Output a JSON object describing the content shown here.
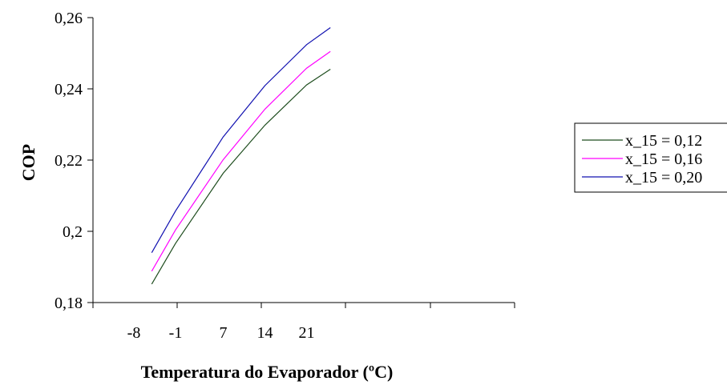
{
  "chart_data": {
    "type": "line",
    "title": "",
    "xlabel": "Temperatura do Evaporador (ºC)",
    "ylabel": "COP",
    "x": [
      -5,
      -1,
      7,
      14,
      21,
      25
    ],
    "series": [
      {
        "name": "x_15 = 0,12",
        "color": "#1e4d1e",
        "values": [
          0.1852,
          0.1966,
          0.2163,
          0.2298,
          0.2411,
          0.2455
        ]
      },
      {
        "name": "x_15 = 0,16",
        "color": "#ff00ff",
        "values": [
          0.1888,
          0.2004,
          0.2201,
          0.2343,
          0.2458,
          0.2505
        ]
      },
      {
        "name": "x_15 = 0,20",
        "color": "#1010b0",
        "values": [
          0.194,
          0.2057,
          0.2265,
          0.2409,
          0.2524,
          0.2572
        ]
      }
    ],
    "xticks": [
      -8,
      -1,
      7,
      14,
      21
    ],
    "xtick_labels": [
      "-8",
      "-1",
      "7",
      "14",
      "21"
    ],
    "yticks": [
      0.18,
      0.2,
      0.22,
      0.24,
      0.26
    ],
    "ytick_labels": [
      "0,18",
      "0,2",
      "0,22",
      "0,24",
      "0,26"
    ],
    "ylim": [
      0.18,
      0.26
    ],
    "grid": false,
    "legend": "right"
  }
}
